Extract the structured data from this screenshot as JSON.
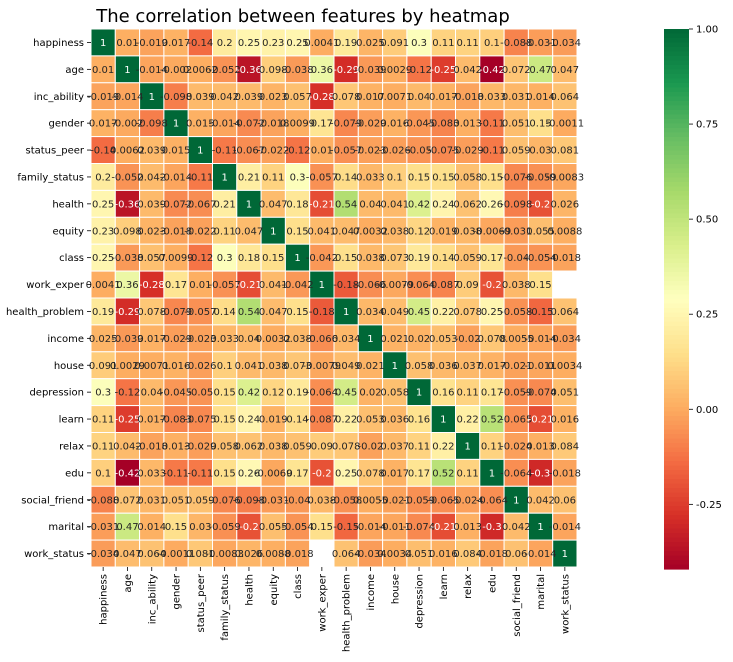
{
  "chart_data": {
    "type": "heatmap",
    "title": "The correlation between features by heatmap",
    "xlabel": "",
    "ylabel": "",
    "labels": [
      "happiness",
      "age",
      "inc_ability",
      "gender",
      "status_peer",
      "family_status",
      "health",
      "equity",
      "class",
      "work_exper",
      "health_problem",
      "income",
      "house",
      "depression",
      "learn",
      "relax",
      "edu",
      "social_friend",
      "marital",
      "work_status"
    ],
    "display_labels": [
      [
        "1",
        "0.01",
        "-0.019",
        "0.017",
        "-0.14",
        "0.2",
        "0.25",
        "0.23",
        "0.25",
        "0.0041",
        "0.19",
        "0.025",
        "0.091",
        "0.3",
        "0.11",
        "0.11",
        "0.1",
        "-0.088",
        "-0.031",
        "-0.034"
      ],
      [
        "0.01",
        "1",
        "-0.014",
        "-0.002",
        "0.0062",
        "-0.052",
        "-0.36",
        "0.098",
        "-0.038",
        "0.36",
        "-0.29",
        "-0.039",
        "0.0029",
        "-0.12",
        "-0.25",
        "0.042",
        "-0.42",
        "0.072",
        "0.47",
        "0.047"
      ],
      [
        "-0.019",
        "-0.014",
        "1",
        "-0.098",
        "0.039",
        "0.042",
        "0.039",
        "0.023",
        "0.057",
        "-0.28",
        "0.078",
        "0.017",
        "0.0071",
        "0.04",
        "0.017",
        "-0.018",
        "0.033",
        "0.031",
        "0.014",
        "0.064"
      ],
      [
        "0.017",
        "-0.002",
        "-0.098",
        "1",
        "0.015",
        "-0.014",
        "-0.072",
        "-0.018",
        "0.0099",
        "0.17",
        "-0.079",
        "-0.029",
        "0.016",
        "-0.045",
        "-0.083",
        "0.013",
        "-0.11",
        "0.051",
        "0.15",
        "-0.0011"
      ],
      [
        "-0.14",
        "0.0062",
        "0.039",
        "0.015",
        "1",
        "-0.11",
        "-0.067",
        "-0.022",
        "-0.12",
        "0.01",
        "-0.057",
        "-0.023",
        "-0.026",
        "-0.05",
        "-0.075",
        "-0.029",
        "-0.11",
        "0.059",
        "0.03",
        "0.081"
      ],
      [
        "0.2",
        "-0.052",
        "0.042",
        "-0.014",
        "-0.11",
        "1",
        "0.21",
        "0.11",
        "0.3",
        "-0.057",
        "0.14",
        "0.033",
        "0.1",
        "0.15",
        "0.15",
        "0.058",
        "0.15",
        "-0.076",
        "-0.059",
        "-0.0083"
      ],
      [
        "0.25",
        "-0.36",
        "0.039",
        "-0.072",
        "-0.067",
        "0.21",
        "1",
        "0.047",
        "0.18",
        "-0.21",
        "0.54",
        "0.04",
        "0.041",
        "0.42",
        "0.24",
        "0.062",
        "0.26",
        "-0.098",
        "-0.2",
        "0.026"
      ],
      [
        "0.23",
        "0.098",
        "0.023",
        "-0.018",
        "-0.022",
        "0.11",
        "0.047",
        "1",
        "0.15",
        "0.041",
        "0.047",
        "0.0032",
        "0.038",
        "0.12",
        "0.019",
        "0.038",
        "-0.0069",
        "-0.031",
        "0.055",
        "0.0088"
      ],
      [
        "0.25",
        "-0.038",
        "0.057",
        "0.0099",
        "-0.12",
        "0.3",
        "0.18",
        "0.15",
        "1",
        "-0.042",
        "0.15",
        "0.038",
        "0.073",
        "0.19",
        "0.14",
        "0.059",
        "0.17",
        "-0.04",
        "-0.054",
        "-0.018"
      ],
      [
        "0.0041",
        "0.36",
        "-0.28",
        "0.17",
        "0.01",
        "-0.057",
        "-0.21",
        "0.041",
        "-0.042",
        "1",
        "-0.18",
        "-0.066",
        "-0.0079",
        "-0.064",
        "-0.087",
        "0.09",
        "-0.2",
        "0.038",
        "0.15",
        ""
      ],
      [
        "0.19",
        "-0.29",
        "0.078",
        "-0.079",
        "-0.057",
        "0.14",
        "0.54",
        "0.047",
        "0.15",
        "-0.18",
        "1",
        "0.034",
        "0.049",
        "0.45",
        "0.22",
        "0.078",
        "0.25",
        "-0.058",
        "-0.15",
        "0.064"
      ],
      [
        "0.025",
        "-0.039",
        "0.017",
        "-0.029",
        "-0.023",
        "0.033",
        "0.04",
        "0.0032",
        "0.038",
        "-0.066",
        "0.034",
        "1",
        "0.021",
        "0.02",
        "0.053",
        "-0.02",
        "0.078",
        "0.0055",
        "-0.014",
        "-0.034"
      ],
      [
        "0.091",
        "0.0029",
        "0.0071",
        "0.016",
        "-0.026",
        "0.1",
        "0.041",
        "0.038",
        "0.073",
        "-0.0079",
        "0.049",
        "0.021",
        "1",
        "0.058",
        "0.036",
        "0.037",
        "0.017",
        "-0.021",
        "-0.011",
        "0.0034"
      ],
      [
        "0.3",
        "-0.12",
        "0.04",
        "-0.045",
        "-0.05",
        "0.15",
        "0.42",
        "0.12",
        "0.19",
        "-0.064",
        "0.45",
        "0.02",
        "0.058",
        "1",
        "0.16",
        "0.11",
        "0.17",
        "-0.059",
        "-0.074",
        "0.051"
      ],
      [
        "0.11",
        "-0.25",
        "0.017",
        "-0.083",
        "-0.075",
        "0.15",
        "0.24",
        "0.019",
        "0.14",
        "-0.087",
        "0.22",
        "0.053",
        "0.036",
        "0.16",
        "1",
        "0.22",
        "0.52",
        "-0.065",
        "-0.21",
        "0.016"
      ],
      [
        "0.11",
        "0.042",
        "-0.018",
        "0.013",
        "-0.029",
        "0.058",
        "0.062",
        "0.038",
        "0.059",
        "0.09",
        "0.078",
        "-0.02",
        "0.037",
        "0.11",
        "0.22",
        "1",
        "0.11",
        "-0.024",
        "0.013",
        "0.084"
      ],
      [
        "0.1",
        "-0.42",
        "0.033",
        "-0.11",
        "-0.11",
        "0.15",
        "0.26",
        "-0.0069",
        "0.17",
        "-0.2",
        "0.25",
        "0.078",
        "0.017",
        "0.17",
        "0.52",
        "0.11",
        "1",
        "-0.064",
        "-0.3",
        "-0.018"
      ],
      [
        "-0.088",
        "0.072",
        "0.031",
        "0.051",
        "0.059",
        "-0.076",
        "-0.098",
        "-0.031",
        "-0.04",
        "0.038",
        "-0.058",
        "0.0055",
        "-0.021",
        "-0.059",
        "-0.065",
        "-0.024",
        "-0.064",
        "1",
        "0.042",
        "0.06"
      ],
      [
        "-0.031",
        "0.47",
        "0.014",
        "0.15",
        "0.03",
        "-0.059",
        "-0.2",
        "0.055",
        "-0.054",
        "0.15",
        "-0.15",
        "-0.014",
        "-0.011",
        "-0.074",
        "-0.21",
        "0.013",
        "-0.3",
        "0.042",
        "1",
        "-0.014"
      ],
      [
        "-0.034",
        "0.047",
        "0.064",
        "-0.0011",
        "0.081",
        "-0.0083",
        "0.026",
        "0.0088",
        "-0.018",
        "",
        "0.064",
        "-0.034",
        "0.0034",
        "0.051",
        "0.016",
        "0.084",
        "-0.018",
        "0.06",
        "-0.014",
        "1"
      ]
    ],
    "colormap": "RdYlGn",
    "colormap_stops": [
      "#a50026",
      "#d73027",
      "#f46d43",
      "#fdae61",
      "#fee08b",
      "#ffffbf",
      "#d9ef8b",
      "#a6d96a",
      "#66bd63",
      "#1a9850",
      "#006837"
    ],
    "value_range": [
      -0.42,
      1.0
    ],
    "missing_color": "#ffffff",
    "colorbar_ticks": [
      "1.00",
      "0.75",
      "0.50",
      "0.25",
      "0.00",
      "-0.25"
    ],
    "grid": true
  }
}
